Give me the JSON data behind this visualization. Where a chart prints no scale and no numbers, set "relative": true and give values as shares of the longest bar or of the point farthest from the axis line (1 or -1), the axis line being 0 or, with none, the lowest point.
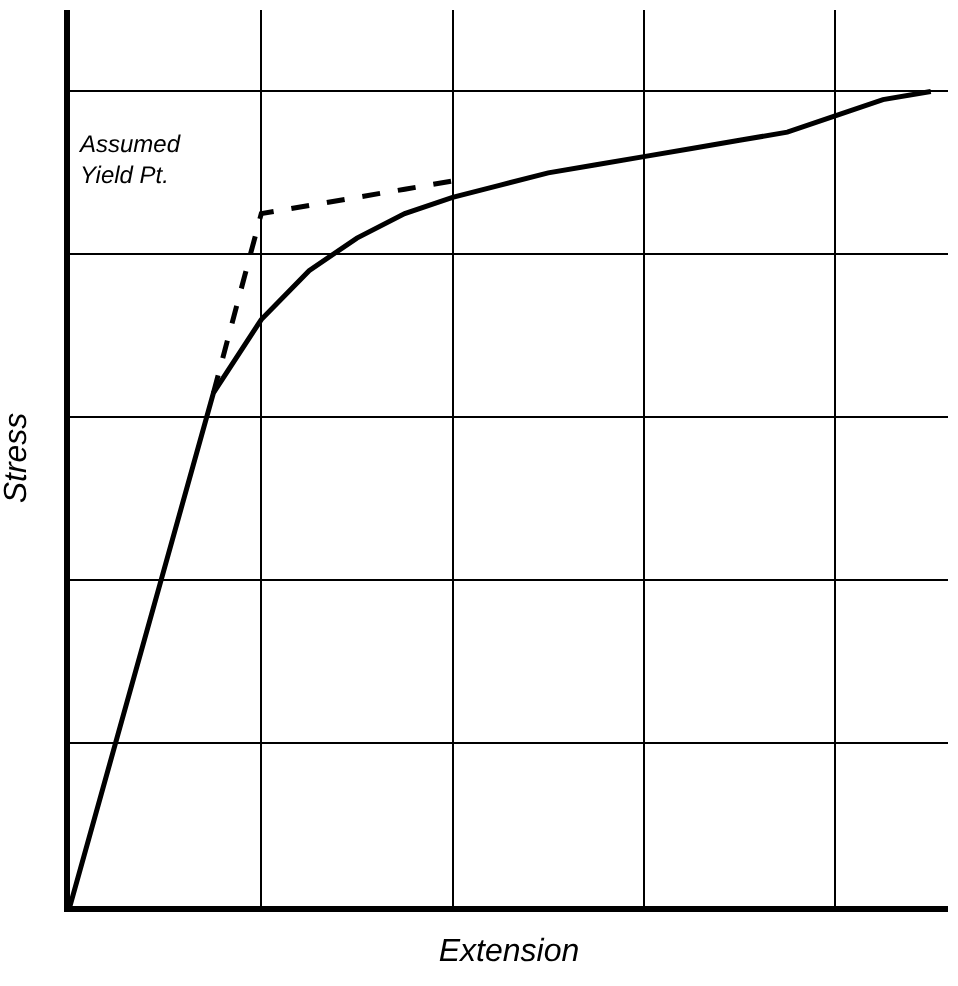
{
  "chart_data": {
    "type": "line",
    "xlabel": "Extension",
    "ylabel": "Stress",
    "relative": true,
    "categories": [
      null,
      null,
      null,
      null,
      null,
      null,
      null,
      null,
      null,
      null,
      null,
      null,
      null,
      null,
      null,
      null,
      null,
      null,
      null
    ],
    "tick_labels": false,
    "grid": true,
    "marker": "none",
    "series": [
      {
        "color": "#000000",
        "line_style": "solid",
        "values": [
          0,
          0.21,
          0.42,
          0.63,
          0.72,
          0.78,
          0.82,
          0.85,
          0.87,
          0.885,
          0.9,
          0.91,
          0.92,
          0.93,
          0.94,
          0.95,
          0.97,
          0.99,
          1.0
        ]
      },
      {
        "color": "#000000",
        "line_style": "dashed",
        "values": [
          null,
          null,
          null,
          0.63,
          0.85,
          0.86,
          0.87,
          0.88,
          0.89,
          null,
          null,
          null,
          null,
          null,
          null,
          null,
          null,
          null,
          null
        ]
      }
    ],
    "annotations": [
      "Assumed\nYield Pt."
    ]
  }
}
